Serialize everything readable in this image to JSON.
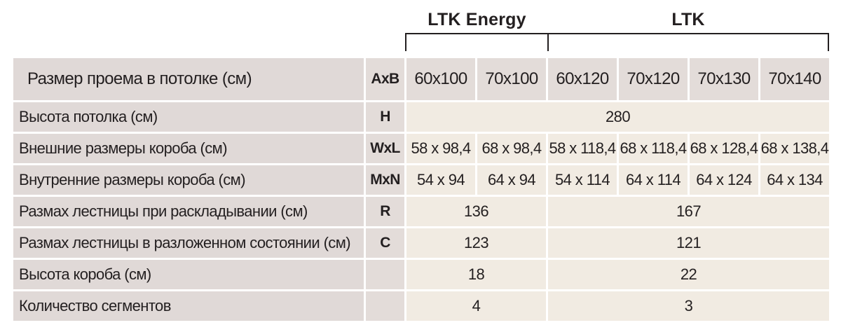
{
  "groups": {
    "energy": "LTK Energy",
    "ltk": "LTK"
  },
  "rows": [
    {
      "param": "Размер проема в потолке (см)",
      "sym": "AxB",
      "values": [
        "60x100",
        "70x100",
        "60x120",
        "70x120",
        "70x130",
        "70x140"
      ]
    },
    {
      "param": "Высота потолка (см)",
      "sym": "H",
      "value": "280"
    },
    {
      "param": "Внешние размеры короба (см)",
      "sym": "WxL",
      "values": [
        "58 x 98,4",
        "68 x 98,4",
        "58 x 118,4",
        "68 x 118,4",
        "68 x 128,4",
        "68 x 138,4"
      ]
    },
    {
      "param": "Внутренние размеры короба (см)",
      "sym": "MxN",
      "values": [
        "54 x 94",
        "64 x 94",
        "54 x 114",
        "64 x 114",
        "64 x 124",
        "64 x 134"
      ]
    },
    {
      "param": "Размах лестницы при раскладывании (см)",
      "sym": "R",
      "energy": "136",
      "ltk": "167"
    },
    {
      "param": "Размах лестницы в разложенном состоянии (см)",
      "sym": "C",
      "energy": "123",
      "ltk": "121"
    },
    {
      "param": "Высота короба (см)",
      "sym": "",
      "energy": "18",
      "ltk": "22"
    },
    {
      "param": "Количество сегментов",
      "sym": "",
      "energy": "4",
      "ltk": "3"
    }
  ]
}
